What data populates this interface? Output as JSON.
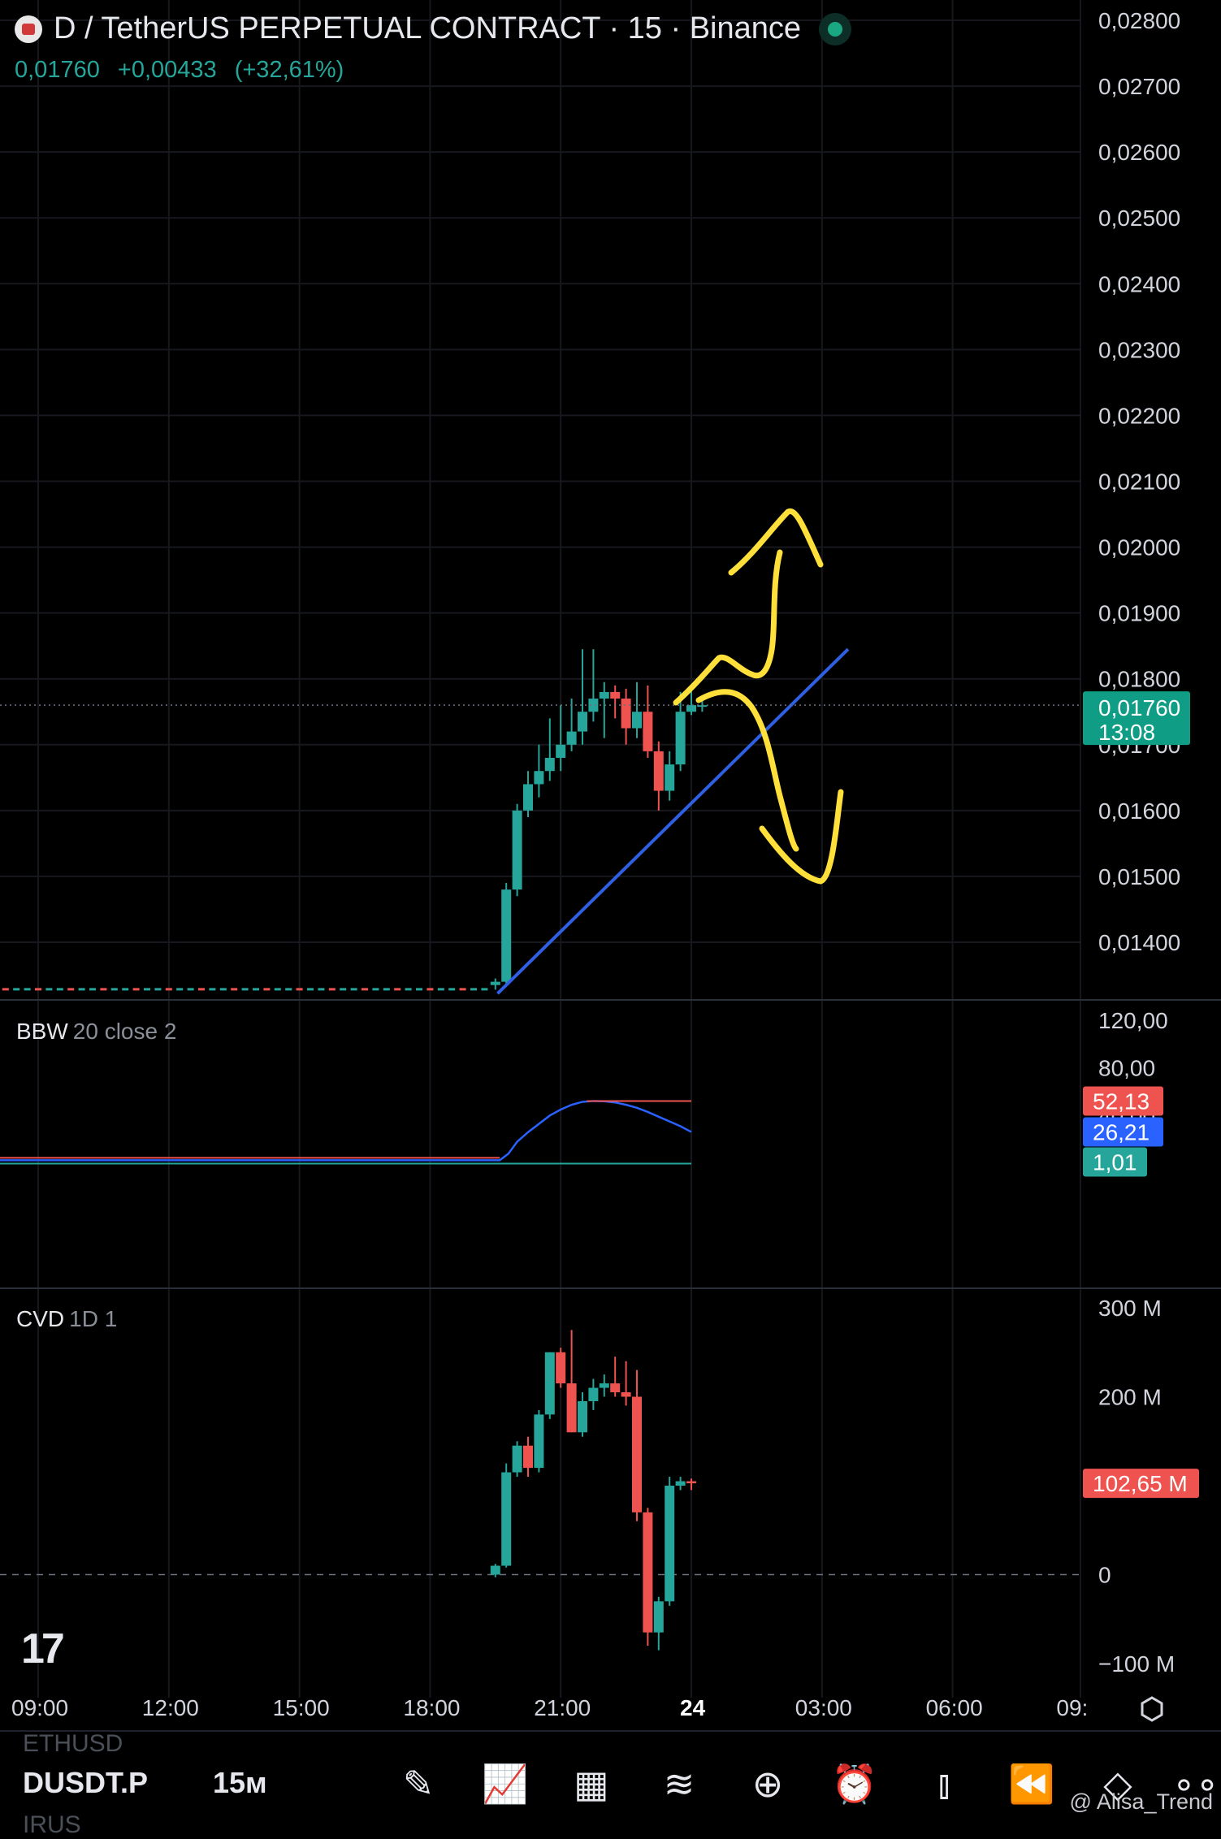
{
  "header": {
    "title": "D / TetherUS PERPETUAL CONTRACT · 15 · Binance",
    "last_price": "0,01760",
    "change": "+0,00433",
    "change_pct": "(+32,61%)"
  },
  "colors": {
    "up": "#26a69a",
    "down": "#ef5350",
    "trendline": "#2f5fe3",
    "annotation": "#ffe03a",
    "bbw_line": "#2962ff"
  },
  "chart_data": [
    {
      "type": "candlestick",
      "title": "D / TetherUS PERPETUAL CONTRACT · 15 · Binance",
      "ylim": [
        0.0131,
        0.0283
      ],
      "y_ticks": [
        "0,02800",
        "0,02700",
        "0,02600",
        "0,02500",
        "0,02400",
        "0,02300",
        "0,02200",
        "0,02100",
        "0,02000",
        "0,01900",
        "0,01800",
        "0,01700",
        "0,01600",
        "0,01500",
        "0,01400"
      ],
      "x_ticks": [
        "09:00",
        "12:00",
        "15:00",
        "18:00",
        "21:00",
        "24",
        "03:00",
        "06:00",
        "09:"
      ],
      "price_label": "0,01760",
      "countdown": "13:08",
      "candles_pre": {
        "from_hour": 8.0,
        "to_hour": 19.3,
        "base": 0.01328
      },
      "candles": [
        {
          "t": 19.5,
          "o": 0.01335,
          "h": 0.01345,
          "l": 0.01328,
          "c": 0.0134
        },
        {
          "t": 19.75,
          "o": 0.0134,
          "h": 0.0149,
          "l": 0.01335,
          "c": 0.0148
        },
        {
          "t": 20.0,
          "o": 0.0148,
          "h": 0.0161,
          "l": 0.0147,
          "c": 0.016
        },
        {
          "t": 20.25,
          "o": 0.016,
          "h": 0.0166,
          "l": 0.0159,
          "c": 0.0164
        },
        {
          "t": 20.5,
          "o": 0.0164,
          "h": 0.017,
          "l": 0.0162,
          "c": 0.0166
        },
        {
          "t": 20.75,
          "o": 0.0166,
          "h": 0.0174,
          "l": 0.01645,
          "c": 0.0168
        },
        {
          "t": 21.0,
          "o": 0.0168,
          "h": 0.0176,
          "l": 0.0166,
          "c": 0.017
        },
        {
          "t": 21.25,
          "o": 0.017,
          "h": 0.0177,
          "l": 0.0169,
          "c": 0.0172
        },
        {
          "t": 21.5,
          "o": 0.0172,
          "h": 0.01845,
          "l": 0.017,
          "c": 0.0175
        },
        {
          "t": 21.75,
          "o": 0.0175,
          "h": 0.01845,
          "l": 0.01735,
          "c": 0.0177
        },
        {
          "t": 22.0,
          "o": 0.0177,
          "h": 0.01795,
          "l": 0.0171,
          "c": 0.0178
        },
        {
          "t": 22.25,
          "o": 0.0178,
          "h": 0.0179,
          "l": 0.0174,
          "c": 0.0177
        },
        {
          "t": 22.5,
          "o": 0.0177,
          "h": 0.01785,
          "l": 0.017,
          "c": 0.01725
        },
        {
          "t": 22.75,
          "o": 0.01725,
          "h": 0.01795,
          "l": 0.0171,
          "c": 0.0175
        },
        {
          "t": 23.0,
          "o": 0.0175,
          "h": 0.0179,
          "l": 0.0168,
          "c": 0.0169
        },
        {
          "t": 23.25,
          "o": 0.0169,
          "h": 0.01705,
          "l": 0.016,
          "c": 0.0163
        },
        {
          "t": 23.5,
          "o": 0.0163,
          "h": 0.0169,
          "l": 0.01615,
          "c": 0.0167
        },
        {
          "t": 23.75,
          "o": 0.0167,
          "h": 0.0178,
          "l": 0.0166,
          "c": 0.0175
        },
        {
          "t": 24.0,
          "o": 0.0175,
          "h": 0.0179,
          "l": 0.01745,
          "c": 0.0176
        },
        {
          "t": 24.25,
          "o": 0.0176,
          "h": 0.0177,
          "l": 0.0175,
          "c": 0.0176
        }
      ],
      "trendline": [
        [
          19.55,
          0.01322
        ],
        [
          27.6,
          0.01845
        ]
      ]
    },
    {
      "type": "line",
      "title": "BBW",
      "params": "20 close 2",
      "ylim": [
        0,
        125
      ],
      "y_ticks": [
        "120,00",
        "80,00",
        "40,00"
      ],
      "labels": [
        {
          "value": "52,13",
          "y": 52.13,
          "color": "#ef5350"
        },
        {
          "value": "26,21",
          "y": 26.21,
          "color": "#2962ff"
        },
        {
          "value": "1,01",
          "y": 1.01,
          "color": "#26a69a"
        }
      ],
      "x": [
        8.0,
        19.6,
        19.8,
        20.0,
        20.25,
        20.5,
        20.75,
        21.0,
        21.25,
        21.5,
        21.75,
        22.0,
        22.25,
        22.5,
        22.75,
        23.0,
        23.25,
        23.5,
        23.75,
        24.0
      ],
      "y": [
        2.5,
        2.5,
        8,
        18,
        26,
        33,
        40,
        45,
        49,
        51.5,
        52.2,
        52.0,
        51,
        49,
        46.5,
        43,
        39,
        35,
        31,
        26.2
      ],
      "highest": 52.13,
      "lowest": 1.01
    },
    {
      "type": "candlestick",
      "title": "CVD",
      "params": "1D 1",
      "ylim": [
        -100,
        300
      ],
      "y_ticks": [
        "300 M",
        "200 M",
        "0",
        "−100 M"
      ],
      "last_label": "102,65 M",
      "candles": [
        {
          "t": 19.5,
          "o": 0,
          "h": 12,
          "l": -3,
          "c": 10
        },
        {
          "t": 19.75,
          "o": 10,
          "h": 125,
          "l": 8,
          "c": 115
        },
        {
          "t": 20.0,
          "o": 115,
          "h": 150,
          "l": 110,
          "c": 145
        },
        {
          "t": 20.25,
          "o": 145,
          "h": 155,
          "l": 110,
          "c": 120
        },
        {
          "t": 20.5,
          "o": 120,
          "h": 185,
          "l": 115,
          "c": 180
        },
        {
          "t": 20.75,
          "o": 180,
          "h": 250,
          "l": 175,
          "c": 250
        },
        {
          "t": 21.0,
          "o": 250,
          "h": 255,
          "l": 210,
          "c": 215
        },
        {
          "t": 21.25,
          "o": 215,
          "h": 275,
          "l": 160,
          "c": 160
        },
        {
          "t": 21.5,
          "o": 160,
          "h": 205,
          "l": 155,
          "c": 195
        },
        {
          "t": 21.75,
          "o": 195,
          "h": 220,
          "l": 185,
          "c": 210
        },
        {
          "t": 22.0,
          "o": 210,
          "h": 225,
          "l": 200,
          "c": 215
        },
        {
          "t": 22.25,
          "o": 215,
          "h": 245,
          "l": 200,
          "c": 205
        },
        {
          "t": 22.5,
          "o": 205,
          "h": 240,
          "l": 190,
          "c": 200
        },
        {
          "t": 22.75,
          "o": 200,
          "h": 230,
          "l": 60,
          "c": 70
        },
        {
          "t": 23.0,
          "o": 70,
          "h": 75,
          "l": -80,
          "c": -65
        },
        {
          "t": 23.25,
          "o": -65,
          "h": -25,
          "l": -85,
          "c": -30
        },
        {
          "t": 23.5,
          "o": -30,
          "h": 110,
          "l": -35,
          "c": 100
        },
        {
          "t": 23.75,
          "o": 100,
          "h": 110,
          "l": 95,
          "c": 105
        },
        {
          "t": 24.0,
          "o": 105,
          "h": 108,
          "l": 95,
          "c": 102.65
        }
      ]
    }
  ],
  "panes": {
    "bbw_title": "BBW",
    "bbw_params": "20 close 2",
    "cvd_title": "CVD",
    "cvd_params": "1D 1"
  },
  "toolbar": {
    "prev_symbol": "ETHUSD",
    "symbol": "DUSDT.P",
    "timeframe": "15м",
    "next_symbol": "IRUS"
  },
  "icons": [
    "pencil-icon",
    "indicators-icon",
    "layout-grid-icon",
    "chart-type-icon",
    "add-icon",
    "alert-icon",
    "candles-icon",
    "rewind-icon",
    "layers-icon",
    "more-icon",
    "settings-hex-icon"
  ],
  "watermark": "@ Alisa_Trend",
  "tv_logo": "17"
}
